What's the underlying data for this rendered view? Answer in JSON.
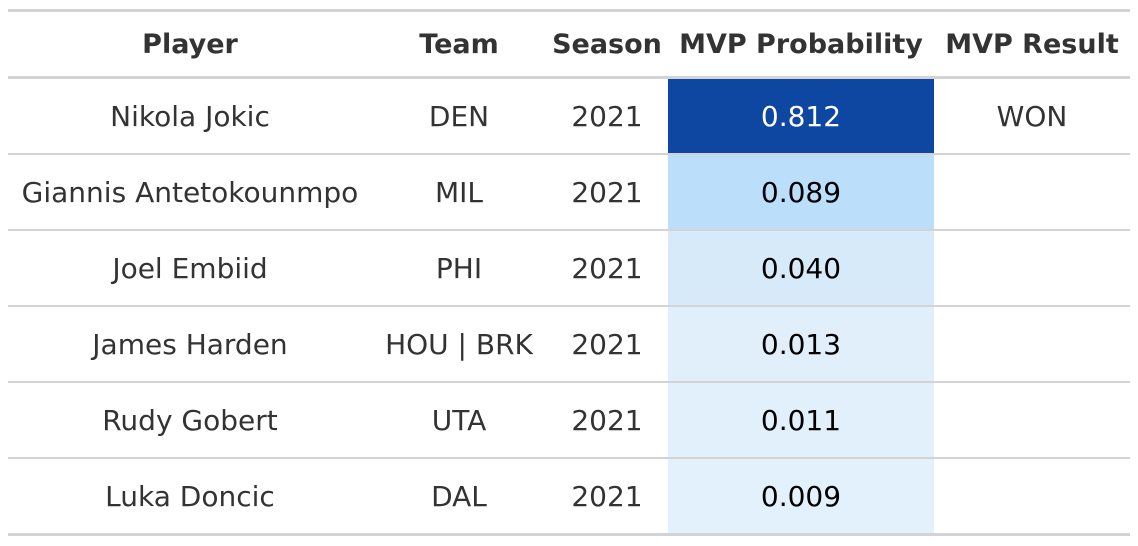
{
  "table": {
    "columns": {
      "player": "Player",
      "team": "Team",
      "season": "Season",
      "probability": "MVP Probability",
      "result": "MVP Result"
    },
    "rows": [
      {
        "player": "Nikola Jokic",
        "team": "DEN",
        "season": "2021",
        "probability": "0.812",
        "result": "WON",
        "cell_bg": "#0d47a1",
        "cell_fg": "#ffffff"
      },
      {
        "player": "Giannis Antetokounmpo",
        "team": "MIL",
        "season": "2021",
        "probability": "0.089",
        "result": "",
        "cell_bg": "#bbdefb",
        "cell_fg": "#000000"
      },
      {
        "player": "Joel Embiid",
        "team": "PHI",
        "season": "2021",
        "probability": "0.040",
        "result": "",
        "cell_bg": "#d6eaf9",
        "cell_fg": "#000000"
      },
      {
        "player": "James Harden",
        "team": "HOU | BRK",
        "season": "2021",
        "probability": "0.013",
        "result": "",
        "cell_bg": "#e1effb",
        "cell_fg": "#000000"
      },
      {
        "player": "Rudy Gobert",
        "team": "UTA",
        "season": "2021",
        "probability": "0.011",
        "result": "",
        "cell_bg": "#e2f0fc",
        "cell_fg": "#000000"
      },
      {
        "player": "Luka Doncic",
        "team": "DAL",
        "season": "2021",
        "probability": "0.009",
        "result": "",
        "cell_bg": "#e3f1fd",
        "cell_fg": "#000000"
      }
    ]
  }
}
